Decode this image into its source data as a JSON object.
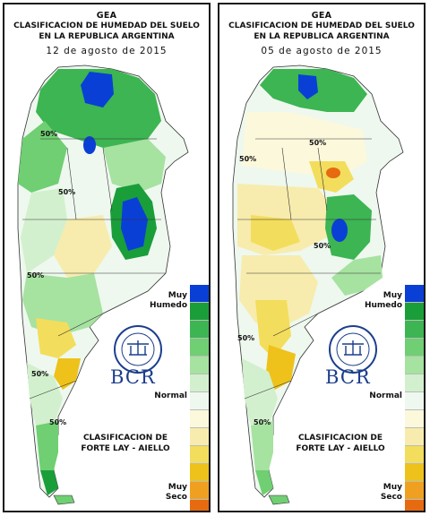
{
  "panels": [
    {
      "source": "GEA",
      "title_line1": "CLASIFICACION DE HUMEDAD DEL SUELO",
      "title_line2": "EN LA REPUBLICA ARGENTINA",
      "date": "12 de agosto de 2015",
      "contour_labels": [
        "50%",
        "50%",
        "50%",
        "50%",
        "50%"
      ]
    },
    {
      "source": "GEA",
      "title_line1": "CLASIFICACION DE HUMEDAD DEL SUELO",
      "title_line2": "EN LA REPUBLICA ARGENTINA",
      "date": "05 de agosto de 2015",
      "contour_labels": [
        "50%",
        "50%",
        "50%",
        "50%",
        "50%"
      ]
    }
  ],
  "legend": {
    "label_top_1": "Muy",
    "label_top_2": "Humedo",
    "label_mid": "Normal",
    "label_bot_1": "Muy",
    "label_bot_2": "Seco",
    "colors": [
      "#0a3fd6",
      "#1a9e3a",
      "#3cb552",
      "#6fcf72",
      "#a6e2a0",
      "#d2f0cd",
      "#eef8ef",
      "#fcf8dc",
      "#f7ecad",
      "#f3dd5c",
      "#eec21a",
      "#f0a020",
      "#e66a10",
      "#e01a1a"
    ]
  },
  "logo": {
    "brand": "BCR",
    "seal_text": "BOLSA DE COMERCIO DE ROSARIO"
  },
  "method": {
    "line1": "CLASIFICACION DE",
    "line2": "FORTE LAY - AIELLO"
  }
}
